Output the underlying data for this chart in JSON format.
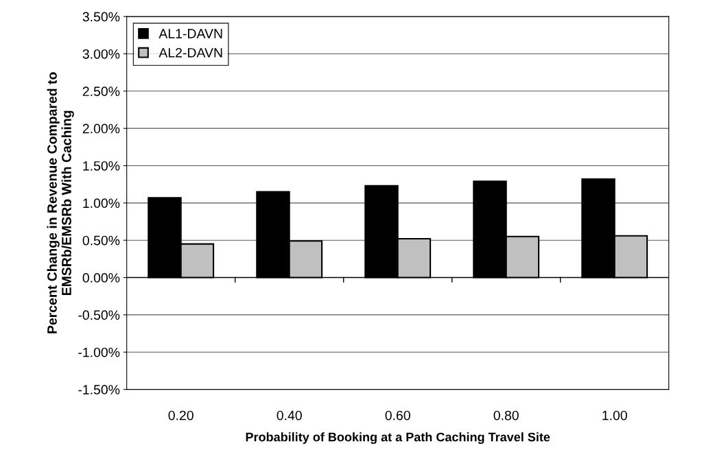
{
  "chart_data": {
    "type": "bar",
    "xlabel": "Probability of Booking at a Path Caching Travel Site",
    "ylabel": "Percent Change in Revenue Compared to\nEMSRb/EMSRb With Caching",
    "categories": [
      "0.20",
      "0.40",
      "0.60",
      "0.80",
      "1.00"
    ],
    "series": [
      {
        "name": "AL1-DAVN",
        "color": "#000000",
        "values": [
          1.07,
          1.15,
          1.23,
          1.29,
          1.32
        ]
      },
      {
        "name": "AL2-DAVN",
        "color": "#c0c0c0",
        "values": [
          0.45,
          0.49,
          0.52,
          0.55,
          0.56
        ]
      }
    ],
    "ylim": [
      -1.5,
      3.5
    ],
    "yticks": [
      {
        "value": -1.5,
        "label": "-1.50%"
      },
      {
        "value": -1.0,
        "label": "-1.00%"
      },
      {
        "value": -0.5,
        "label": "-0.50%"
      },
      {
        "value": 0,
        "label": "0.00%"
      },
      {
        "value": 0.5,
        "label": "0.50%"
      },
      {
        "value": 1.0,
        "label": "1.00%"
      },
      {
        "value": 1.5,
        "label": "1.50%"
      },
      {
        "value": 2.0,
        "label": "2.00%"
      },
      {
        "value": 2.5,
        "label": "2.50%"
      },
      {
        "value": 3.0,
        "label": "3.00%"
      },
      {
        "value": 3.5,
        "label": "3.50%"
      }
    ],
    "grid": "y",
    "legend": "top left"
  }
}
